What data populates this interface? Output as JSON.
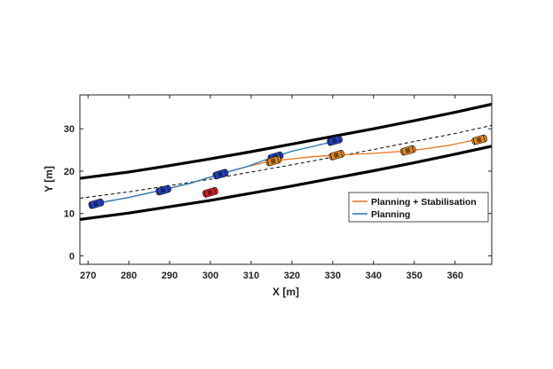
{
  "chart_data": {
    "type": "line",
    "title": "",
    "xlabel": "X [m]",
    "ylabel": "Y [m]",
    "xlim": [
      268,
      369
    ],
    "ylim": [
      -2,
      38
    ],
    "xticks": [
      270,
      280,
      290,
      300,
      310,
      320,
      330,
      340,
      350,
      360
    ],
    "yticks": [
      0,
      10,
      20,
      30
    ],
    "grid": false,
    "legend_position": "lower-right",
    "legend": [
      {
        "label": "Planning + Stabilisation",
        "color": "#e8731c"
      },
      {
        "label": "Planning",
        "color": "#1f77b4"
      }
    ],
    "road_boundaries": [
      {
        "name": "upper-boundary",
        "style": "thick-black",
        "x": [
          268,
          280,
          290,
          300,
          310,
          320,
          330,
          340,
          350,
          360,
          369
        ],
        "y": [
          18.3,
          19.8,
          21.3,
          22.9,
          24.6,
          26.4,
          28.2,
          30.0,
          31.9,
          33.9,
          35.8
        ]
      },
      {
        "name": "lower-boundary",
        "style": "thick-black",
        "x": [
          268,
          280,
          290,
          300,
          310,
          320,
          330,
          340,
          350,
          360,
          369
        ],
        "y": [
          8.6,
          10.1,
          11.6,
          13.1,
          14.8,
          16.5,
          18.3,
          20.1,
          22.0,
          24.0,
          25.9
        ]
      },
      {
        "name": "center-reference",
        "style": "dashed-black",
        "x": [
          268,
          280,
          290,
          300,
          310,
          320,
          330,
          340,
          350,
          360,
          369
        ],
        "y": [
          13.6,
          15.1,
          16.6,
          18.1,
          19.8,
          21.5,
          23.3,
          25.1,
          27.0,
          28.9,
          30.8
        ]
      }
    ],
    "series": [
      {
        "name": "Planning + Stabilisation",
        "color": "#e8731c",
        "x": [
          272,
          280,
          288,
          295,
          302,
          309,
          315,
          320,
          325,
          331,
          340,
          349,
          358,
          367
        ],
        "y": [
          12.4,
          13.8,
          15.5,
          17.1,
          19.2,
          21.1,
          22.4,
          22.9,
          23.4,
          23.8,
          24.2,
          24.8,
          26.0,
          27.8
        ]
      },
      {
        "name": "Planning",
        "color": "#1f77b4",
        "x": [
          272,
          280,
          288,
          295,
          302,
          309,
          315,
          320,
          325,
          331
        ],
        "y": [
          12.4,
          13.8,
          15.5,
          17.1,
          19.2,
          21.1,
          23.2,
          24.7,
          25.8,
          27.2
        ]
      }
    ],
    "vehicles": [
      {
        "color": "#2343c8",
        "x": 272.0,
        "y": 12.3
      },
      {
        "color": "#2343c8",
        "x": 288.5,
        "y": 15.5
      },
      {
        "color": "#2343c8",
        "x": 302.5,
        "y": 19.3
      },
      {
        "color": "#2343c8",
        "x": 316.0,
        "y": 23.4
      },
      {
        "color": "#2343c8",
        "x": 330.5,
        "y": 27.2
      },
      {
        "color": "#e8891c",
        "x": 315.5,
        "y": 22.4
      },
      {
        "color": "#e8891c",
        "x": 331.0,
        "y": 23.8
      },
      {
        "color": "#e8891c",
        "x": 348.5,
        "y": 24.9
      },
      {
        "color": "#e8891c",
        "x": 366.0,
        "y": 27.4
      },
      {
        "color": "#d81f2a",
        "x": 300.0,
        "y": 15.0
      }
    ]
  }
}
